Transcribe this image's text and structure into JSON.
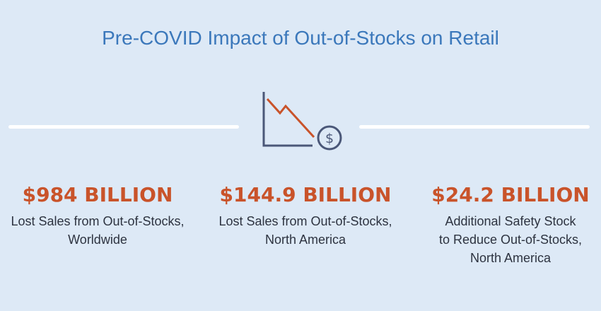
{
  "title": "Pre-COVID Impact of Out-of-Stocks on Retail",
  "colors": {
    "background": "#dde9f6",
    "title": "#3b78bb",
    "accent": "#c9532a",
    "icon_axis": "#4a5778",
    "body_text": "#2d3340"
  },
  "icon": "declining-sales-chart-with-dollar-coin-icon",
  "coin_symbol": "$",
  "stats": [
    {
      "value": "$984 BILLION",
      "description_lines": [
        "Lost Sales from Out-of-Stocks,",
        "Worldwide"
      ]
    },
    {
      "value": "$144.9 BILLION",
      "description_lines": [
        "Lost Sales from Out-of-Stocks,",
        "North America"
      ]
    },
    {
      "value": "$24.2 BILLION",
      "description_lines": [
        "Additional Safety Stock",
        "to Reduce Out-of-Stocks,",
        "North America"
      ]
    }
  ]
}
